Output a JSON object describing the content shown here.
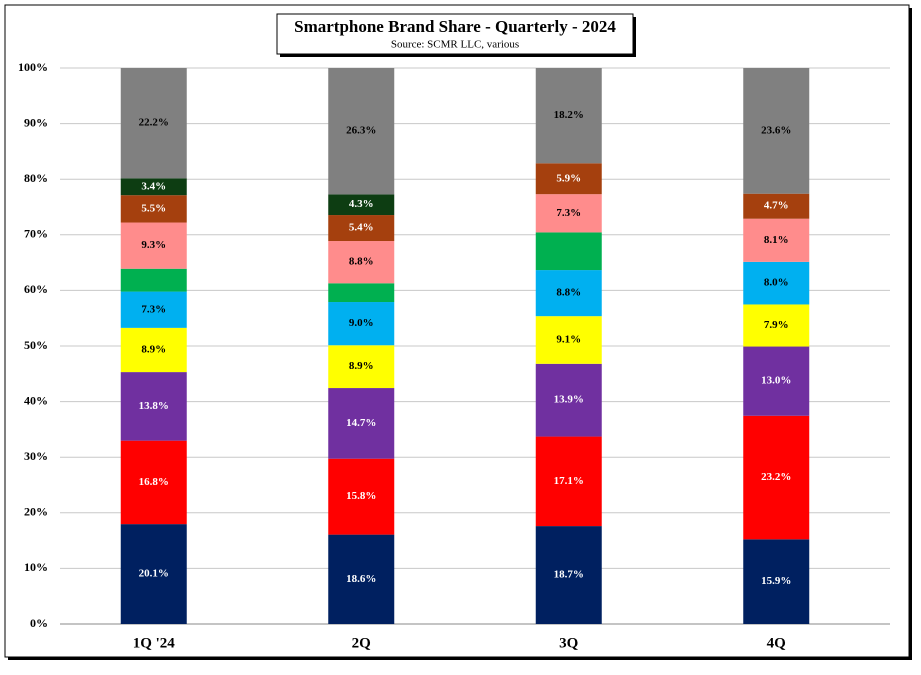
{
  "chart_data": {
    "type": "bar",
    "stacking": "percent",
    "title": "Smartphone Brand Share - Quarterly - 2024",
    "subtitle": "Source: SCMR LLC, various",
    "categories": [
      "1Q '24",
      "2Q",
      "3Q",
      "4Q"
    ],
    "ylim": [
      0,
      100
    ],
    "yticks": [
      {
        "value": 0,
        "label": "0%"
      },
      {
        "value": 10,
        "label": "10%"
      },
      {
        "value": 20,
        "label": "20%"
      },
      {
        "value": 30,
        "label": "30%"
      },
      {
        "value": 40,
        "label": "40%"
      },
      {
        "value": 50,
        "label": "50%"
      },
      {
        "value": 60,
        "label": "60%"
      },
      {
        "value": 70,
        "label": "70%"
      },
      {
        "value": 80,
        "label": "80%"
      },
      {
        "value": 90,
        "label": "90%"
      },
      {
        "value": 100,
        "label": "100%"
      }
    ],
    "grid": true,
    "series": [
      {
        "color": "#002060",
        "label_color": "#ffffff",
        "values": [
          20.1,
          18.6,
          18.7,
          15.9
        ],
        "value_labels": [
          "20.1%",
          "18.6%",
          "18.7%",
          "15.9%"
        ]
      },
      {
        "color": "#ff0000",
        "label_color": "#ffffff",
        "values": [
          16.8,
          15.8,
          17.1,
          23.2
        ],
        "value_labels": [
          "16.8%",
          "15.8%",
          "17.1%",
          "23.2%"
        ]
      },
      {
        "color": "#7030a0",
        "label_color": "#ffffff",
        "values": [
          13.8,
          14.7,
          13.9,
          13.0
        ],
        "value_labels": [
          "13.8%",
          "14.7%",
          "13.9%",
          "13.0%"
        ]
      },
      {
        "color": "#ffff00",
        "label_color": "#000000",
        "values": [
          8.9,
          8.9,
          9.1,
          7.9
        ],
        "value_labels": [
          "8.9%",
          "8.9%",
          "9.1%",
          "7.9%"
        ]
      },
      {
        "color": "#00b0f0",
        "label_color": "#000000",
        "values": [
          7.3,
          9.0,
          8.8,
          8.0
        ],
        "value_labels": [
          "7.3%",
          "9.0%",
          "8.8%",
          "8.0%"
        ]
      },
      {
        "color": "#00b050",
        "label_color": "#000000",
        "values": [
          4.6,
          3.9,
          7.2,
          0
        ],
        "value_labels": [
          null,
          null,
          null,
          null
        ]
      },
      {
        "color": "#ff8c8c",
        "label_color": "#000000",
        "values": [
          9.3,
          8.8,
          7.3,
          8.1
        ],
        "value_labels": [
          "9.3%",
          "8.8%",
          "7.3%",
          "8.1%"
        ]
      },
      {
        "color": "#a5400e",
        "label_color": "#ffffff",
        "values": [
          5.5,
          5.4,
          5.9,
          4.7
        ],
        "value_labels": [
          "5.5%",
          "5.4%",
          "5.9%",
          "4.7%"
        ]
      },
      {
        "color": "#0d3d12",
        "label_color": "#ffffff",
        "values": [
          3.4,
          4.3,
          0,
          0
        ],
        "value_labels": [
          "3.4%",
          "4.3%",
          null,
          null
        ]
      },
      {
        "color": "#808080",
        "label_color": "#000000",
        "values": [
          22.2,
          26.3,
          18.2,
          23.6
        ],
        "value_labels": [
          "22.2%",
          "26.3%",
          "18.2%",
          "23.6%"
        ]
      }
    ]
  }
}
